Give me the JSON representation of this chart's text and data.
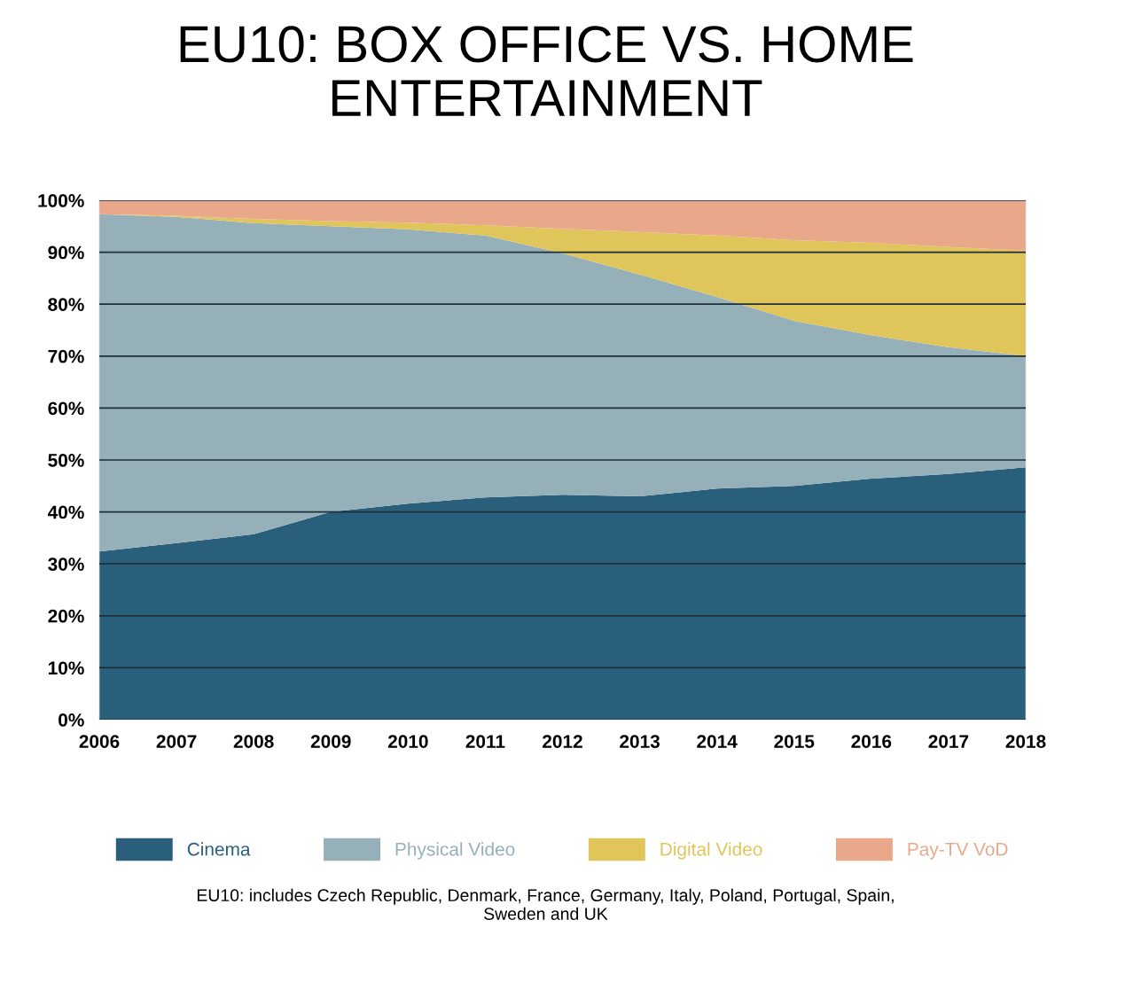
{
  "chart_data": {
    "type": "area",
    "stacked": true,
    "title": "EU10: BOX OFFICE VS. HOME\nENTERTAINMENT",
    "x": [
      2006,
      2007,
      2008,
      2009,
      2010,
      2011,
      2012,
      2013,
      2014,
      2015,
      2016,
      2017,
      2018
    ],
    "series": [
      {
        "name": "Cinema",
        "color": "#2a5f7c",
        "values": [
          32.4,
          34,
          35.7,
          40,
          41.6,
          42.8,
          43.3,
          43,
          44.5,
          45,
          46.4,
          47.3,
          48.6
        ]
      },
      {
        "name": "Physical Video",
        "color": "#96b0b9",
        "values": [
          64.9,
          62.8,
          59.9,
          55,
          52.8,
          50.4,
          46.5,
          42.7,
          36.9,
          31.8,
          27.6,
          24.4,
          21.4
        ]
      },
      {
        "name": "Digital Video",
        "color": "#e0c55a",
        "values": [
          0,
          0.2,
          0.8,
          1,
          1.3,
          2,
          4.7,
          8.2,
          11.8,
          15.5,
          17.8,
          19.3,
          20.3
        ]
      },
      {
        "name": "Pay-TV VoD",
        "color": "#e9a88a",
        "values": [
          2.7,
          3,
          3.6,
          4,
          4.3,
          4.8,
          5.5,
          6.1,
          6.8,
          7.7,
          8.2,
          9,
          9.7
        ]
      }
    ],
    "xlim": [
      2006,
      2018
    ],
    "xticks": [
      2006,
      2007,
      2008,
      2009,
      2010,
      2011,
      2012,
      2013,
      2014,
      2015,
      2016,
      2017,
      2018
    ],
    "ylim": [
      0,
      100
    ],
    "yticks": [
      {
        "value": 0,
        "label": "0%"
      },
      {
        "value": 10,
        "label": "10%"
      },
      {
        "value": 20,
        "label": "20%"
      },
      {
        "value": 30,
        "label": "30%"
      },
      {
        "value": 40,
        "label": "40%"
      },
      {
        "value": 50,
        "label": "50%"
      },
      {
        "value": 60,
        "label": "60%"
      },
      {
        "value": 70,
        "label": "70%"
      },
      {
        "value": 80,
        "label": "80%"
      },
      {
        "value": 90,
        "label": "90%"
      },
      {
        "value": 100,
        "label": "100%"
      }
    ],
    "grid": "y",
    "legend": "bottom",
    "annotations": [
      "EU10: includes Czech Republic, Denmark, France, Germany, Italy, Poland, Portugal, Spain,\nSweden and UK"
    ]
  }
}
